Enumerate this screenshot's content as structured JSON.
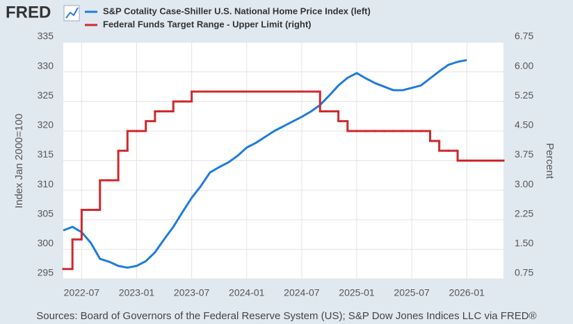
{
  "chart_data": {
    "type": "line",
    "logo": "FRED",
    "y_label": "Index Jan 2000=100",
    "y2_label": "Percent",
    "source": "Sources: Board of Governors of the Federal Reserve System (US); S&P Dow Jones Indices LLC via FRED®",
    "x": [
      "2022-05",
      "2022-06",
      "2022-07",
      "2022-08",
      "2022-09",
      "2022-10",
      "2022-11",
      "2022-12",
      "2023-01",
      "2023-02",
      "2023-03",
      "2023-04",
      "2023-05",
      "2023-06",
      "2023-07",
      "2023-08",
      "2023-09",
      "2023-10",
      "2023-11",
      "2023-12",
      "2024-01",
      "2024-02",
      "2024-03",
      "2024-04",
      "2024-05",
      "2024-06",
      "2024-07",
      "2024-08",
      "2024-09",
      "2024-10",
      "2024-11",
      "2024-12",
      "2025-01",
      "2025-02",
      "2025-03",
      "2025-04",
      "2025-05",
      "2025-06",
      "2025-07",
      "2025-08",
      "2025-09",
      "2025-10",
      "2025-11",
      "2025-12",
      "2026-01",
      "2026-02",
      "2026-03",
      "2026-04",
      "2026-05"
    ],
    "xlim": [
      "2022-05",
      "2026-05"
    ],
    "xticks": [
      "2022-07",
      "2023-01",
      "2023-07",
      "2024-01",
      "2024-07",
      "2025-01",
      "2025-07",
      "2026-01"
    ],
    "ylim": [
      295,
      335
    ],
    "yticks": [
      295,
      300,
      305,
      310,
      315,
      320,
      325,
      330,
      335
    ],
    "y2lim": [
      0.75,
      6.75
    ],
    "y2ticks": [
      0.75,
      {
        "value": 1.5,
        "label": "1.50"
      },
      2.25,
      {
        "value": 3,
        "label": "3.00"
      },
      3.75,
      {
        "value": 4.5,
        "label": "4.50"
      },
      5.25,
      {
        "value": 6,
        "label": "6.00"
      },
      6.75
    ],
    "grid": true,
    "series": [
      {
        "name": "S&P Cotality Case-Shiller U.S. National Home Price Index (left)",
        "color": "#1f7bdc",
        "axis": "y",
        "values": [
          303.2,
          303.8,
          302.9,
          301.1,
          298.4,
          297.9,
          297.2,
          296.9,
          297.2,
          298.0,
          299.5,
          301.7,
          303.8,
          306.3,
          308.7,
          310.7,
          313.0,
          313.9,
          314.7,
          315.8,
          317.2,
          318.0,
          319.0,
          320.0,
          320.8,
          321.6,
          322.4,
          323.3,
          324.4,
          326.0,
          327.7,
          329.0,
          329.8,
          328.9,
          328.1,
          327.5,
          326.9,
          326.9,
          327.3,
          327.7,
          328.9,
          330.1,
          331.2,
          331.7,
          332.0,
          null,
          null,
          null,
          null
        ]
      },
      {
        "name": "Federal Funds Target Range - Upper Limit (right)",
        "color": "#d0282c",
        "axis": "y2",
        "step": true,
        "values": [
          1.0,
          1.75,
          2.5,
          2.5,
          3.25,
          3.25,
          4.0,
          4.5,
          4.5,
          4.75,
          5.0,
          5.0,
          5.25,
          5.25,
          5.5,
          5.5,
          5.5,
          5.5,
          5.5,
          5.5,
          5.5,
          5.5,
          5.5,
          5.5,
          5.5,
          5.5,
          5.5,
          5.5,
          5.0,
          5.0,
          4.75,
          4.5,
          4.5,
          4.5,
          4.5,
          4.5,
          4.5,
          4.5,
          4.5,
          4.5,
          4.25,
          4.0,
          4.0,
          3.75,
          3.75,
          3.75,
          3.75,
          3.75,
          3.75
        ]
      }
    ]
  }
}
